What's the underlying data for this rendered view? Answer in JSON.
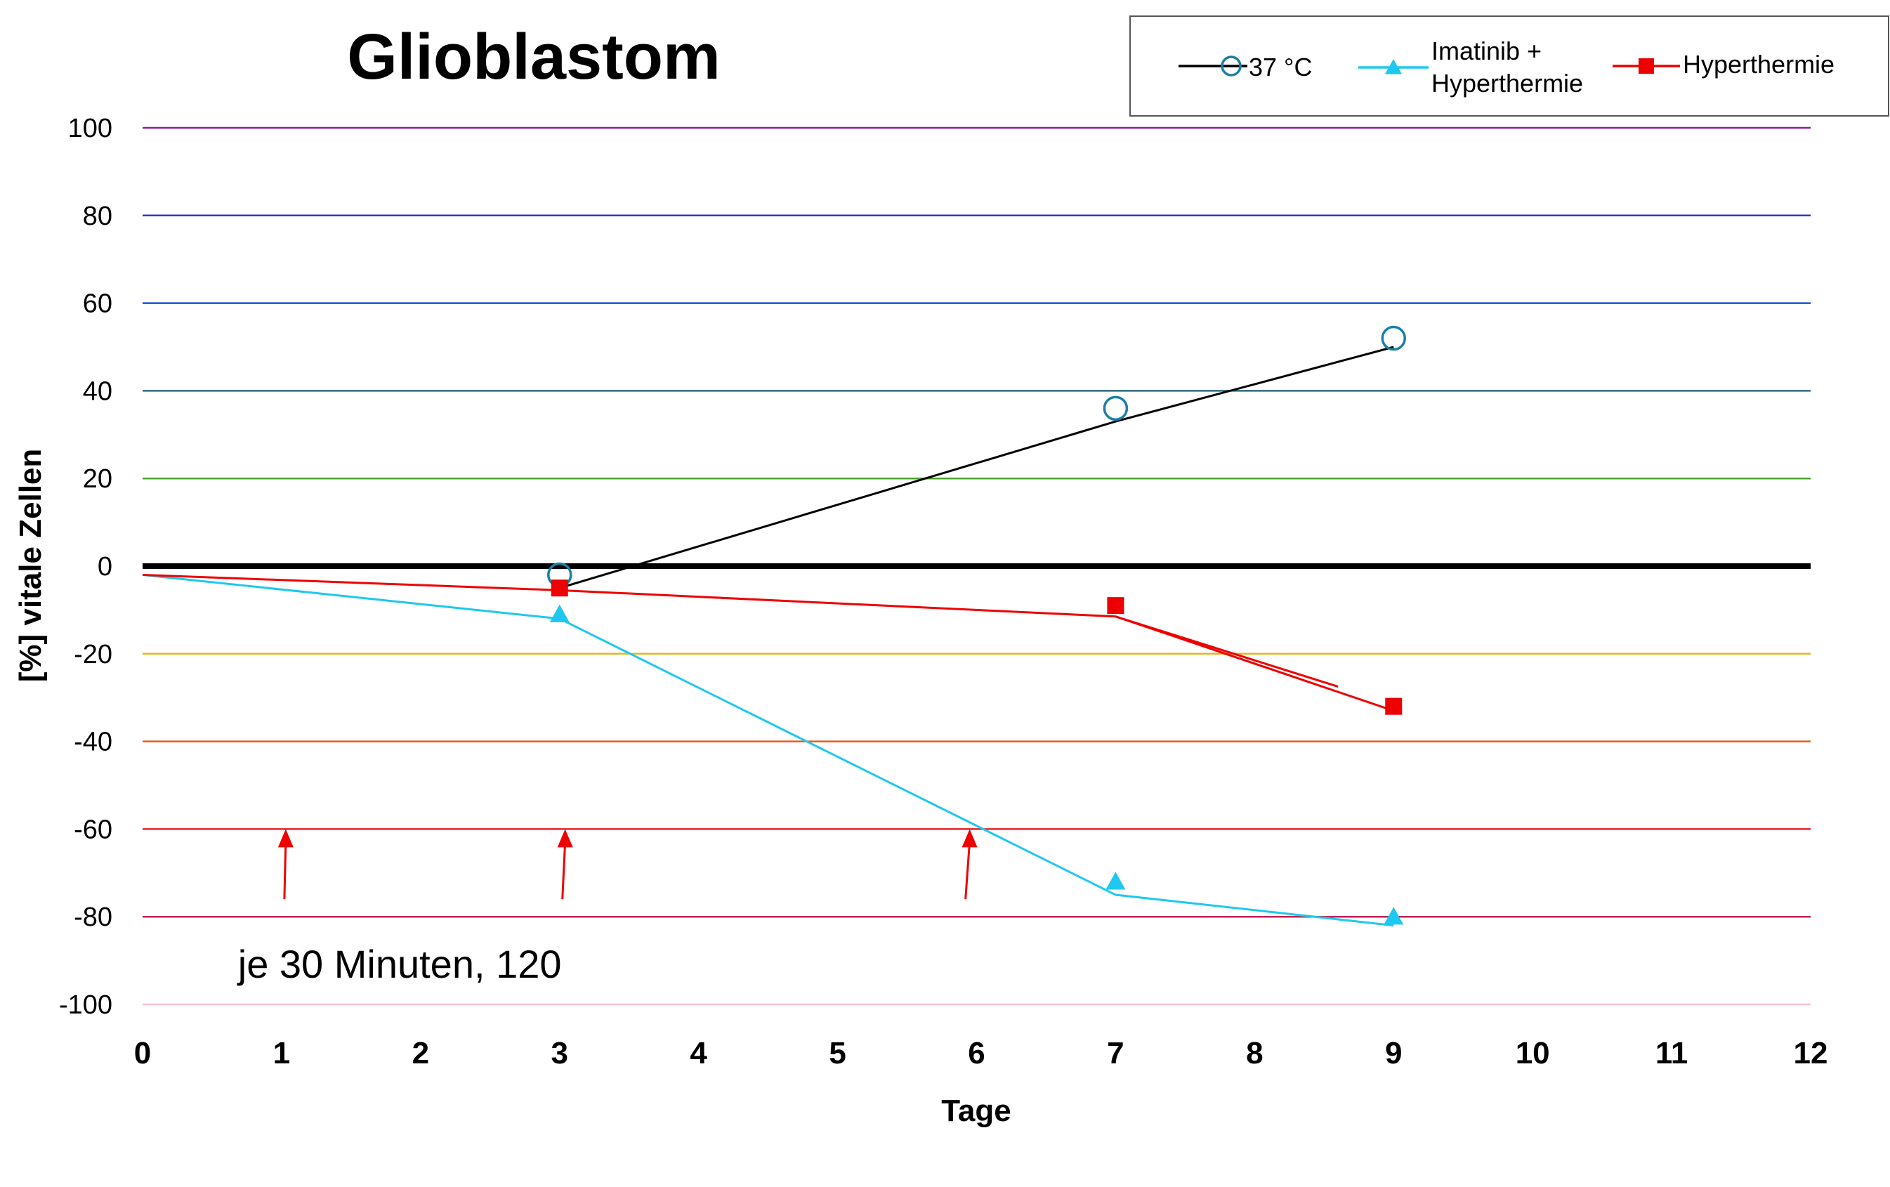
{
  "chart_data": {
    "type": "line",
    "title": "Glioblastom",
    "xlabel": "Tage",
    "ylabel": "[%] vitale Zellen",
    "xlim": [
      0,
      12
    ],
    "ylim": [
      -100,
      100
    ],
    "x_ticks": [
      "0",
      "1",
      "2",
      "3",
      "4",
      "5",
      "6",
      "7",
      "8",
      "9",
      "10",
      "11",
      "12"
    ],
    "y_ticks": [
      "100",
      "80",
      "60",
      "40",
      "20",
      "0",
      "-20",
      "-40",
      "-60",
      "-80",
      "-100"
    ],
    "gridlines": [
      {
        "y": 100,
        "color": "#8e1e9a"
      },
      {
        "y": 80,
        "color": "#3333cc"
      },
      {
        "y": 60,
        "color": "#1a4fd6"
      },
      {
        "y": 40,
        "color": "#2e6b7a"
      },
      {
        "y": 20,
        "color": "#4aa02c"
      },
      {
        "y": 0,
        "color": "#000000"
      },
      {
        "y": -20,
        "color": "#e6b422"
      },
      {
        "y": -40,
        "color": "#e85a1a"
      },
      {
        "y": -60,
        "color": "#e8202a"
      },
      {
        "y": -80,
        "color": "#c4205a"
      },
      {
        "y": -100,
        "color": "#f0c0e0"
      }
    ],
    "series": [
      {
        "name": "37 °C",
        "color": "#000000",
        "marker": "circle-open",
        "marker_color": "#1a7fa8",
        "points": [
          {
            "x": 3,
            "y": -2
          },
          {
            "x": 7,
            "y": 36
          },
          {
            "x": 9,
            "y": 52
          }
        ],
        "trend": [
          {
            "x": 3,
            "y": -5
          },
          {
            "x": 7,
            "y": 33
          },
          {
            "x": 9,
            "y": 50
          }
        ]
      },
      {
        "name": "Imatinib + Hyperthermie",
        "color": "#1ec8f0",
        "marker": "triangle",
        "marker_color": "#1ec8f0",
        "points": [
          {
            "x": 3,
            "y": -11
          },
          {
            "x": 7,
            "y": -72
          },
          {
            "x": 9,
            "y": -80
          }
        ],
        "trend": [
          {
            "x": 0,
            "y": -2
          },
          {
            "x": 3,
            "y": -12
          },
          {
            "x": 7,
            "y": -75
          },
          {
            "x": 9,
            "y": -82
          }
        ]
      },
      {
        "name": "Hyperthermie",
        "color": "#ee0000",
        "marker": "square",
        "marker_color": "#ee0000",
        "points": [
          {
            "x": 3,
            "y": -5
          },
          {
            "x": 7,
            "y": -9
          },
          {
            "x": 9,
            "y": -32
          }
        ],
        "trend": [
          {
            "x": 0,
            "y": -2
          },
          {
            "x": 3,
            "y": -5.5
          },
          {
            "x": 7,
            "y": -11.5
          },
          {
            "x": 9,
            "y": -33
          }
        ],
        "trend_extra": [
          {
            "x": 7,
            "y": -11.5
          },
          {
            "x": 8.6,
            "y": -27.5
          }
        ]
      }
    ],
    "arrows": [
      {
        "x_from": 1.02,
        "y_from": -76,
        "x_to": 1.03,
        "y_to": -60
      },
      {
        "x_from": 3.02,
        "y_from": -76,
        "x_to": 3.04,
        "y_to": -60
      },
      {
        "x_from": 5.92,
        "y_from": -76,
        "x_to": 5.95,
        "y_to": -60
      }
    ],
    "arrow_color": "#ee0000",
    "annotations": [
      {
        "text": "je 30 Minuten, 120",
        "x": 1.85,
        "y": -91
      }
    ],
    "legend": {
      "position": "top-right",
      "entries": [
        {
          "label_lines": [
            "37 °C"
          ]
        },
        {
          "label_lines": [
            "Imatinib +",
            "Hyperthermie"
          ]
        },
        {
          "label_lines": [
            "Hyperthermie"
          ]
        }
      ]
    }
  }
}
